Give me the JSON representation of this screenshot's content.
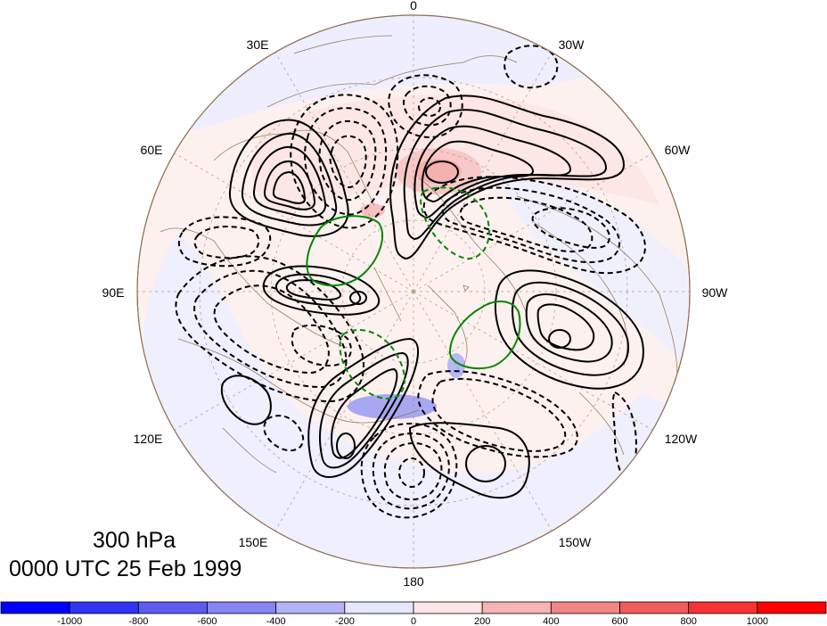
{
  "map": {
    "projection": "north-polar-stereographic",
    "longitude_labels": [
      "0",
      "30W",
      "60W",
      "90W",
      "120W",
      "150W",
      "180",
      "150E",
      "120E",
      "90E",
      "60E",
      "30E"
    ],
    "contour_colors": {
      "positive": "#000000",
      "negative": "#000000",
      "green": "#008800"
    },
    "coastline_color": "#8b7355"
  },
  "titles": {
    "level": "300 hPa",
    "time": "0000 UTC 25 Feb 1999"
  },
  "colorbar": {
    "tick_labels": [
      "-1000",
      "-800",
      "-600",
      "-400",
      "-200",
      "0",
      "200",
      "400",
      "600",
      "800",
      "1000"
    ],
    "colors": [
      "#0000ff",
      "#3333f6",
      "#5c5cf0",
      "#8585f3",
      "#b3b3f8",
      "#e6e6fc",
      "#fde6e6",
      "#f8b3b3",
      "#f38585",
      "#f05c5c",
      "#f63333",
      "#ff0000"
    ]
  }
}
